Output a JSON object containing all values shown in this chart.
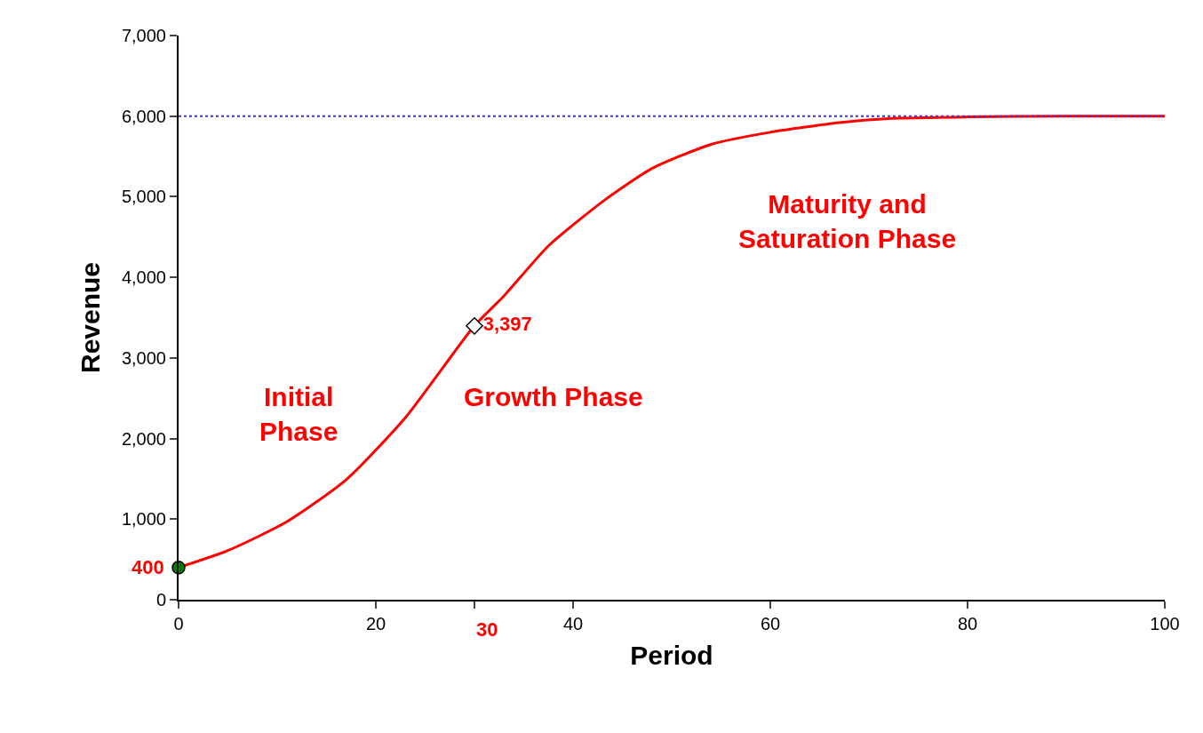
{
  "chart_data": {
    "type": "line",
    "xlabel": "Period",
    "ylabel": "Revenue",
    "xlim": [
      0,
      100
    ],
    "ylim": [
      0,
      7000
    ],
    "xticks": [
      0,
      20,
      {
        "value": 30,
        "label": null
      },
      40,
      60,
      80,
      100
    ],
    "yticks": [
      {
        "value": 0,
        "label": "0"
      },
      {
        "value": 1000,
        "label": "1,000"
      },
      {
        "value": 2000,
        "label": "2,000"
      },
      {
        "value": 3000,
        "label": "3,000"
      },
      {
        "value": 4000,
        "label": "4,000"
      },
      {
        "value": 5000,
        "label": "5,000"
      },
      {
        "value": 6000,
        "label": "6,000"
      },
      {
        "value": 7000,
        "label": "7,000"
      }
    ],
    "series": [
      {
        "color": "#ff0000",
        "marker": "none",
        "line_style": "solid",
        "x": [
          0,
          5,
          11,
          17,
          23,
          30,
          33,
          37.5,
          43,
          48,
          54,
          60,
          67,
          72,
          80,
          90,
          100
        ],
        "values": [
          400,
          610,
          970,
          1490,
          2260,
          3400,
          3770,
          4390,
          4940,
          5350,
          5650,
          5800,
          5920,
          5970,
          5990,
          6000,
          6000
        ]
      },
      {
        "type": "scatter",
        "color": "#008000",
        "marker": "circle",
        "x": [
          0
        ],
        "values": [
          400
        ]
      },
      {
        "type": "scatter",
        "color": "#ffffff",
        "marker": "diamond",
        "x": [
          30
        ],
        "values": [
          3397
        ],
        "value_labels": [
          "3,397"
        ]
      }
    ],
    "ref_lines": [
      {
        "axis": "y",
        "value": 6000,
        "color": "#3333ff",
        "line_style": "dotted"
      }
    ],
    "annotations": [
      "Initial\nPhase",
      "Growth Phase",
      "Maturity and\nSaturation Phase",
      {
        "text": "400",
        "x": 0,
        "y": 400
      },
      "30"
    ]
  }
}
